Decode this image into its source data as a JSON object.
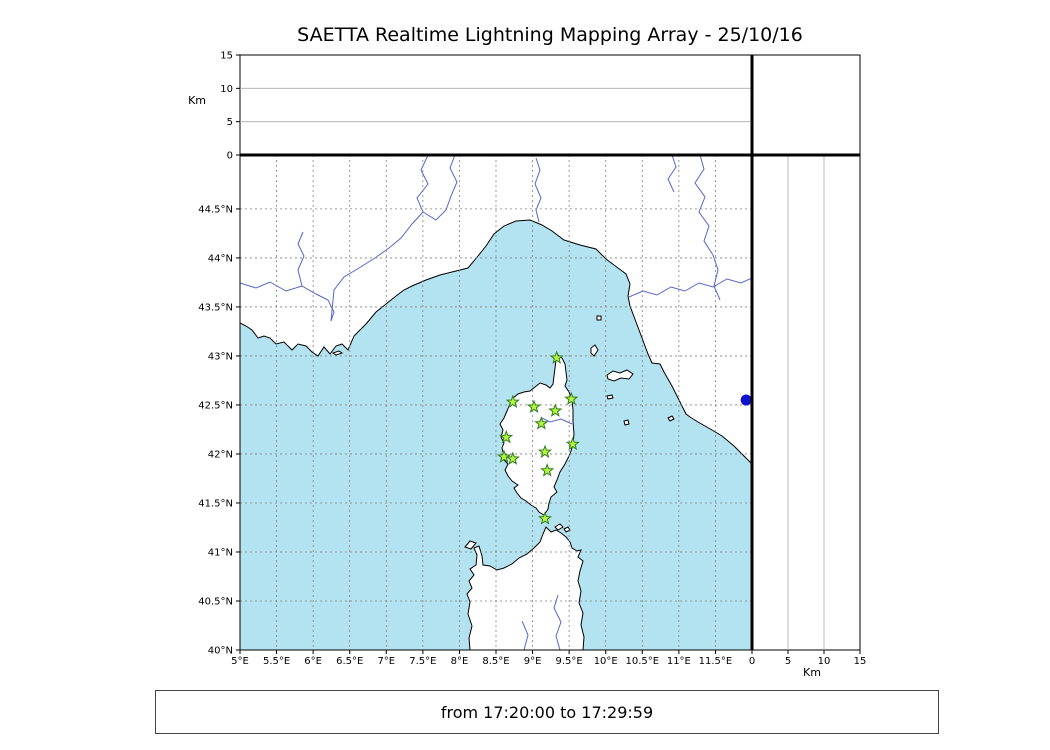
{
  "title": "SAETTA Realtime Lightning Mapping Array - 25/10/16",
  "caption": "from 17:20:00 to 17:29:59",
  "altitude_axis": {
    "label": "Km",
    "min": 0,
    "max": 15,
    "ticks": [
      0,
      5,
      10,
      15
    ],
    "gridlines": [
      5,
      10
    ]
  },
  "map": {
    "lon_min": 5,
    "lon_max": 12,
    "lat_min": 40,
    "lat_max": 45.05,
    "lon_ticks": [
      {
        "value": 5,
        "label": "5°E"
      },
      {
        "value": 5.5,
        "label": "5.5°E"
      },
      {
        "value": 6,
        "label": "6°E"
      },
      {
        "value": 6.5,
        "label": "6.5°E"
      },
      {
        "value": 7,
        "label": "7°E"
      },
      {
        "value": 7.5,
        "label": "7.5°E"
      },
      {
        "value": 8,
        "label": "8°E"
      },
      {
        "value": 8.5,
        "label": "8.5°E"
      },
      {
        "value": 9,
        "label": "9°E"
      },
      {
        "value": 9.5,
        "label": "9.5°E"
      },
      {
        "value": 10,
        "label": "10°E"
      },
      {
        "value": 10.5,
        "label": "10.5°E"
      },
      {
        "value": 11,
        "label": "11°E"
      },
      {
        "value": 11.5,
        "label": "11.5°E"
      }
    ],
    "lat_ticks": [
      {
        "value": 40,
        "label": "40°N"
      },
      {
        "value": 40.5,
        "label": "40.5°N"
      },
      {
        "value": 41,
        "label": "41°N"
      },
      {
        "value": 41.5,
        "label": "41.5°N"
      },
      {
        "value": 42,
        "label": "42°N"
      },
      {
        "value": 42.5,
        "label": "42.5°N"
      },
      {
        "value": 43,
        "label": "43°N"
      },
      {
        "value": 43.5,
        "label": "43.5°N"
      },
      {
        "value": 44,
        "label": "44°N"
      },
      {
        "value": 44.5,
        "label": "44.5°N"
      }
    ],
    "lon_grid": [
      5.5,
      6,
      6.5,
      7,
      7.5,
      8,
      8.5,
      9,
      9.5,
      10,
      10.5,
      11,
      11.5
    ],
    "lat_grid": [
      40.5,
      41,
      41.5,
      42,
      42.5,
      43,
      43.5,
      44,
      44.5
    ]
  },
  "stations": [
    {
      "lon": 9.33,
      "lat": 42.98
    },
    {
      "lon": 8.73,
      "lat": 42.53
    },
    {
      "lon": 9.02,
      "lat": 42.48
    },
    {
      "lon": 9.31,
      "lat": 42.44
    },
    {
      "lon": 9.53,
      "lat": 42.56
    },
    {
      "lon": 9.12,
      "lat": 42.31
    },
    {
      "lon": 8.64,
      "lat": 42.17
    },
    {
      "lon": 9.55,
      "lat": 42.1
    },
    {
      "lon": 8.61,
      "lat": 41.97
    },
    {
      "lon": 8.73,
      "lat": 41.95
    },
    {
      "lon": 9.17,
      "lat": 42.02
    },
    {
      "lon": 9.2,
      "lat": 41.83
    },
    {
      "lon": 9.17,
      "lat": 41.34
    }
  ],
  "coast_point": {
    "lon": 11.92,
    "lat": 42.55
  },
  "colors": {
    "sea": "#b3e3f1",
    "land": "#ffffff",
    "coast": "#000000",
    "river": "#5566cc",
    "grid": "#808080",
    "panel_grid": "#aaaaaa",
    "frame": "#000000",
    "station_fill": "#b6f542",
    "station_stroke": "#2e7d1e",
    "point": "#1212cc"
  }
}
